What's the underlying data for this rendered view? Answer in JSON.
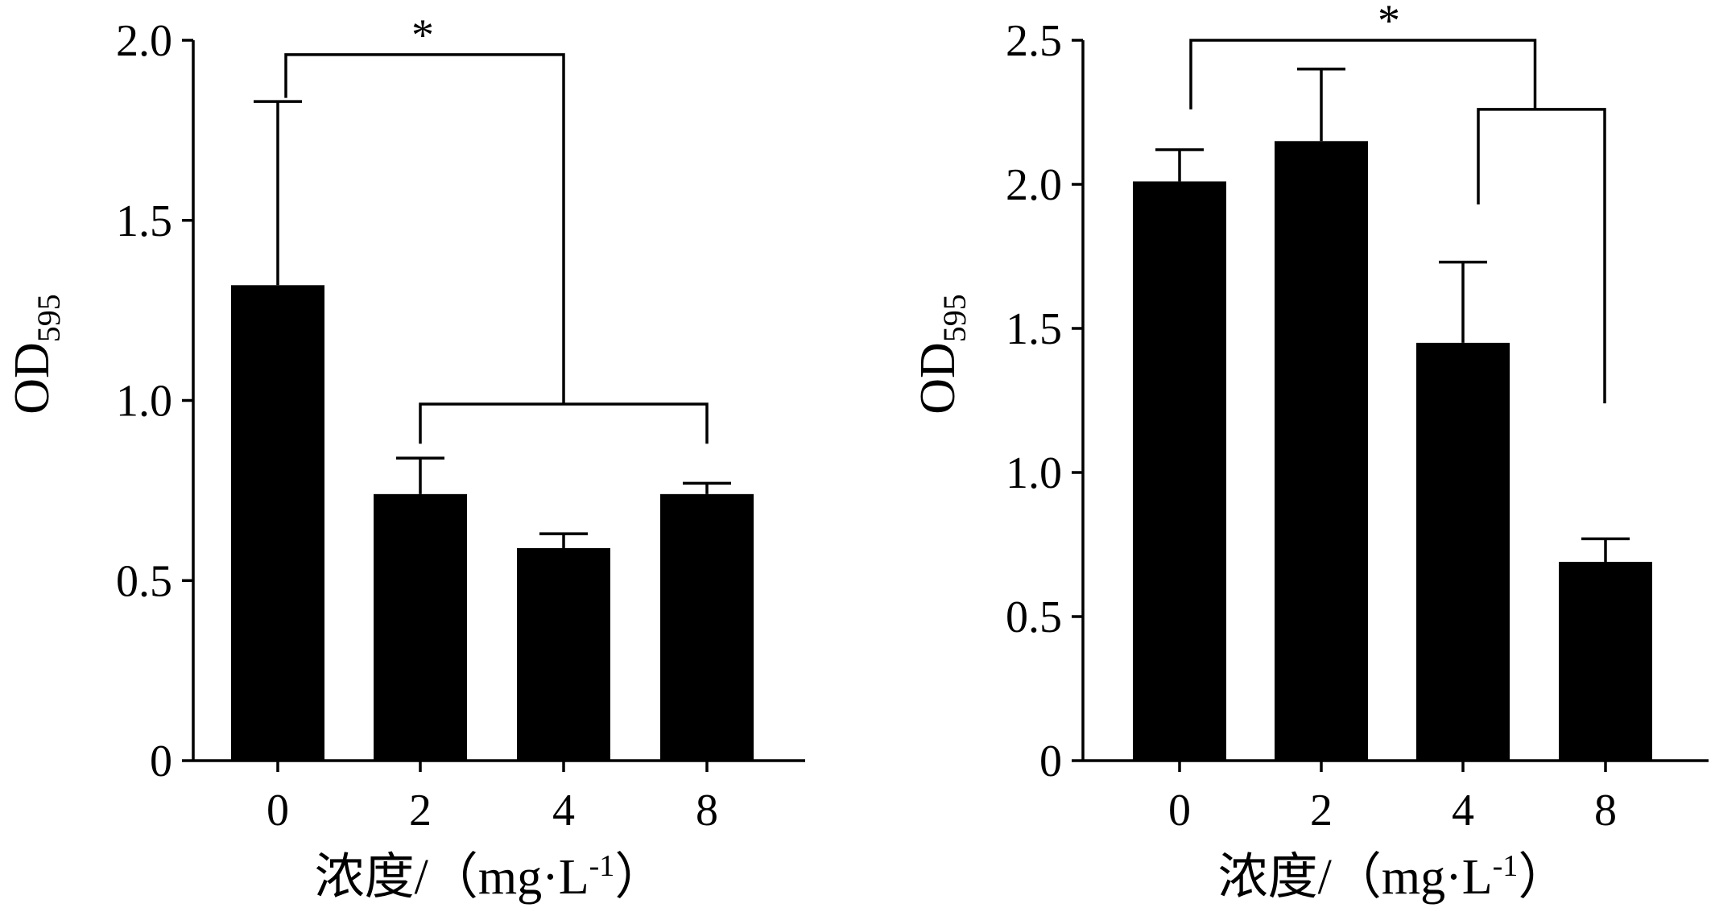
{
  "chart_data": [
    {
      "type": "bar",
      "categories": [
        "0",
        "2",
        "4",
        "8"
      ],
      "values": [
        1.32,
        0.74,
        0.59,
        0.74
      ],
      "errors": [
        0.51,
        0.1,
        0.04,
        0.03
      ],
      "ylabel_main": "OD",
      "ylabel_sub": "595",
      "xlabel": "浓度/（mg·L",
      "xlabel_sup": "-1",
      "xlabel_tail": "）",
      "ylim": [
        0,
        2.0
      ],
      "yticks": [
        0,
        0.5,
        1.0,
        1.5,
        2.0
      ],
      "ytick_labels": [
        "0",
        "0.5",
        "1.0",
        "1.5",
        "2.0"
      ],
      "annotation": "*",
      "color": "#000000"
    },
    {
      "type": "bar",
      "categories": [
        "0",
        "2",
        "4",
        "8"
      ],
      "values": [
        2.01,
        2.15,
        1.45,
        0.69
      ],
      "errors": [
        0.11,
        0.25,
        0.28,
        0.08
      ],
      "ylabel_main": "OD",
      "ylabel_sub": "595",
      "xlabel": "浓度/（mg·L",
      "xlabel_sup": "-1",
      "xlabel_tail": "）",
      "ylim": [
        0,
        2.5
      ],
      "yticks": [
        0,
        0.5,
        1.0,
        1.5,
        2.0,
        2.5
      ],
      "ytick_labels": [
        "0",
        "0.5",
        "1.0",
        "1.5",
        "2.0",
        "2.5"
      ],
      "annotation": "*",
      "color": "#000000"
    }
  ]
}
